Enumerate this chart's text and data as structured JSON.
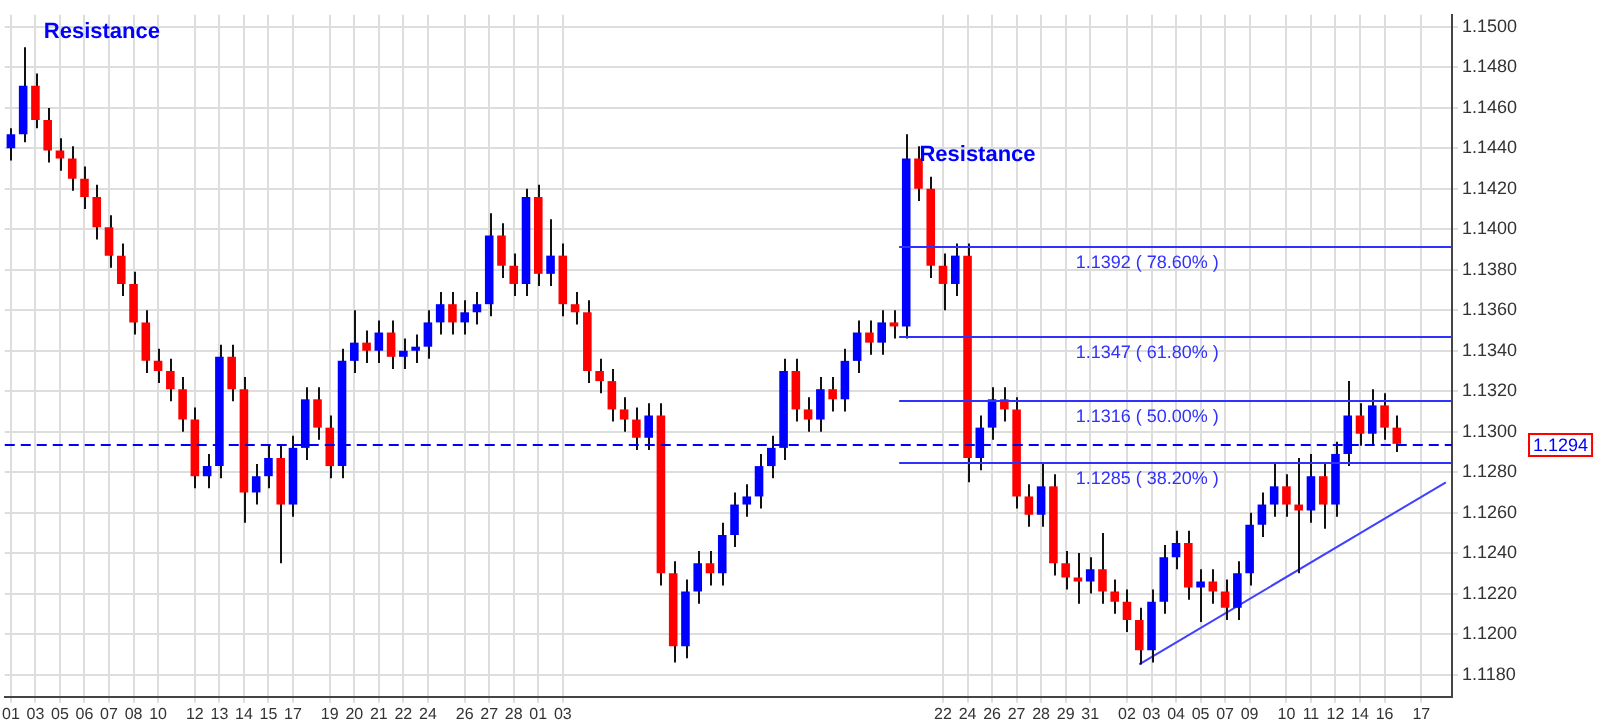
{
  "chart_data": {
    "type": "candlestick",
    "categories": [
      "01",
      null,
      "03",
      null,
      "05",
      null,
      "06",
      null,
      "07",
      null,
      "08",
      null,
      "10",
      null,
      null,
      "12",
      null,
      "13",
      null,
      "14",
      null,
      "15",
      null,
      "17",
      null,
      null,
      "19",
      null,
      "20",
      null,
      "21",
      null,
      "22",
      null,
      "24",
      null,
      null,
      "26",
      null,
      "27",
      null,
      "28",
      null,
      "01",
      null,
      "03",
      null,
      null,
      null,
      null,
      null,
      null,
      null,
      null,
      null,
      null,
      null,
      null,
      null,
      null,
      null,
      null,
      null,
      null,
      null,
      null,
      null,
      null,
      null,
      null,
      null,
      null,
      null,
      null,
      null,
      null,
      "22",
      null,
      "24",
      null,
      "26",
      null,
      "27",
      null,
      "28",
      null,
      "29",
      null,
      "31",
      null,
      null,
      "02",
      null,
      "03",
      null,
      "04",
      null,
      "05",
      null,
      "07",
      null,
      "09",
      null,
      null,
      "10",
      null,
      "11",
      null,
      "12",
      null,
      "14",
      null,
      "16",
      null,
      null,
      "17",
      null,
      null
    ],
    "series": [
      {
        "ohlc": [
          [
            1.144,
            1.145,
            1.1434,
            1.1447
          ],
          [
            1.1447,
            1.149,
            1.1443,
            1.1471
          ],
          [
            1.1471,
            1.1477,
            1.145,
            1.1454
          ],
          [
            1.1454,
            1.146,
            1.1433,
            1.1439
          ],
          [
            1.1439,
            1.1445,
            1.1429,
            1.1435
          ],
          [
            1.1435,
            1.1441,
            1.1419,
            1.1425
          ],
          [
            1.1425,
            1.1431,
            1.141,
            1.1416
          ],
          [
            1.1416,
            1.1422,
            1.1395,
            1.1401
          ],
          [
            1.1401,
            1.1407,
            1.1381,
            1.1387
          ],
          [
            1.1387,
            1.1393,
            1.1367,
            1.1373
          ],
          [
            1.1373,
            1.1379,
            1.1348,
            1.1354
          ],
          [
            1.1354,
            1.136,
            1.1329,
            1.1335
          ],
          [
            1.1335,
            1.1341,
            1.1324,
            1.133
          ],
          [
            1.133,
            1.1336,
            1.1315,
            1.1321
          ],
          [
            1.1321,
            1.1327,
            1.13,
            1.1306
          ],
          [
            1.1306,
            1.1312,
            1.1272,
            1.1278
          ],
          [
            1.1278,
            1.1289,
            1.1272,
            1.1283
          ],
          [
            1.1283,
            1.1343,
            1.1277,
            1.1337
          ],
          [
            1.1337,
            1.1343,
            1.1315,
            1.1321
          ],
          [
            1.1321,
            1.1327,
            1.1255,
            1.127
          ],
          [
            1.127,
            1.1284,
            1.1264,
            1.1278
          ],
          [
            1.1278,
            1.1293,
            1.1272,
            1.1287
          ],
          [
            1.1287,
            1.1293,
            1.1235,
            1.1264
          ],
          [
            1.1264,
            1.1298,
            1.1258,
            1.1292
          ],
          [
            1.1292,
            1.1322,
            1.1286,
            1.1316
          ],
          [
            1.1316,
            1.1322,
            1.1296,
            1.1302
          ],
          [
            1.1302,
            1.1308,
            1.1277,
            1.1283
          ],
          [
            1.1283,
            1.1341,
            1.1277,
            1.1335
          ],
          [
            1.1335,
            1.136,
            1.1329,
            1.1344
          ],
          [
            1.1344,
            1.135,
            1.1334,
            1.134
          ],
          [
            1.134,
            1.1355,
            1.1334,
            1.1349
          ],
          [
            1.1349,
            1.1355,
            1.1331,
            1.1337
          ],
          [
            1.1337,
            1.1346,
            1.1331,
            1.134
          ],
          [
            1.134,
            1.1348,
            1.1334,
            1.1342
          ],
          [
            1.1342,
            1.136,
            1.1336,
            1.1354
          ],
          [
            1.1354,
            1.1369,
            1.1348,
            1.1363
          ],
          [
            1.1363,
            1.1369,
            1.1348,
            1.1354
          ],
          [
            1.1354,
            1.1365,
            1.1348,
            1.1359
          ],
          [
            1.1359,
            1.1369,
            1.1353,
            1.1363
          ],
          [
            1.1363,
            1.1408,
            1.1357,
            1.1397
          ],
          [
            1.1397,
            1.1403,
            1.1376,
            1.1382
          ],
          [
            1.1382,
            1.1388,
            1.1367,
            1.1373
          ],
          [
            1.1373,
            1.142,
            1.1367,
            1.1416
          ],
          [
            1.1416,
            1.1422,
            1.1372,
            1.1378
          ],
          [
            1.1378,
            1.1405,
            1.1372,
            1.1387
          ],
          [
            1.1387,
            1.1393,
            1.1357,
            1.1363
          ],
          [
            1.1363,
            1.1369,
            1.1353,
            1.1359
          ],
          [
            1.1359,
            1.1365,
            1.1324,
            1.133
          ],
          [
            1.133,
            1.1336,
            1.1319,
            1.1325
          ],
          [
            1.1325,
            1.1331,
            1.1305,
            1.1311
          ],
          [
            1.1311,
            1.1317,
            1.13,
            1.1306
          ],
          [
            1.1306,
            1.1312,
            1.1291,
            1.1297
          ],
          [
            1.1297,
            1.1314,
            1.1291,
            1.1308
          ],
          [
            1.1308,
            1.1314,
            1.1224,
            1.123
          ],
          [
            1.123,
            1.1236,
            1.1186,
            1.1194
          ],
          [
            1.1194,
            1.1227,
            1.1188,
            1.1221
          ],
          [
            1.1221,
            1.1241,
            1.1215,
            1.1235
          ],
          [
            1.1235,
            1.1241,
            1.1224,
            1.123
          ],
          [
            1.123,
            1.1255,
            1.1224,
            1.1249
          ],
          [
            1.1249,
            1.127,
            1.1243,
            1.1264
          ],
          [
            1.1264,
            1.1274,
            1.1258,
            1.1268
          ],
          [
            1.1268,
            1.1289,
            1.1262,
            1.1283
          ],
          [
            1.1283,
            1.1298,
            1.1277,
            1.1292
          ],
          [
            1.1292,
            1.1336,
            1.1286,
            1.133
          ],
          [
            1.133,
            1.1336,
            1.1305,
            1.1311
          ],
          [
            1.1311,
            1.1317,
            1.13,
            1.1306
          ],
          [
            1.1306,
            1.1327,
            1.13,
            1.1321
          ],
          [
            1.1321,
            1.1327,
            1.131,
            1.1316
          ],
          [
            1.1316,
            1.1341,
            1.131,
            1.1335
          ],
          [
            1.1335,
            1.1355,
            1.1329,
            1.1349
          ],
          [
            1.1349,
            1.1355,
            1.1338,
            1.1344
          ],
          [
            1.1344,
            1.136,
            1.1338,
            1.1354
          ],
          [
            1.1354,
            1.136,
            1.1346,
            1.1352
          ],
          [
            1.1352,
            1.1447,
            1.1346,
            1.1435
          ],
          [
            1.1435,
            1.1441,
            1.1414,
            1.142
          ],
          [
            1.142,
            1.1426,
            1.1376,
            1.1382
          ],
          [
            1.1382,
            1.1388,
            1.136,
            1.1373
          ],
          [
            1.1373,
            1.1393,
            1.1367,
            1.1387
          ],
          [
            1.1387,
            1.1393,
            1.1275,
            1.1287
          ],
          [
            1.1287,
            1.1308,
            1.1281,
            1.1302
          ],
          [
            1.1302,
            1.1322,
            1.1296,
            1.1316
          ],
          [
            1.1316,
            1.1322,
            1.1305,
            1.1311
          ],
          [
            1.1311,
            1.1317,
            1.1262,
            1.1268
          ],
          [
            1.1268,
            1.1274,
            1.1253,
            1.1259
          ],
          [
            1.1259,
            1.1285,
            1.1253,
            1.1273
          ],
          [
            1.1273,
            1.1279,
            1.1229,
            1.1235
          ],
          [
            1.1235,
            1.1241,
            1.1222,
            1.1228
          ],
          [
            1.1228,
            1.124,
            1.1215,
            1.1226
          ],
          [
            1.1226,
            1.1238,
            1.122,
            1.1232
          ],
          [
            1.1232,
            1.125,
            1.1215,
            1.1221
          ],
          [
            1.1221,
            1.1227,
            1.121,
            1.1216
          ],
          [
            1.1216,
            1.1222,
            1.1201,
            1.1207
          ],
          [
            1.1207,
            1.1213,
            1.1185,
            1.1192
          ],
          [
            1.1192,
            1.1222,
            1.1186,
            1.1216
          ],
          [
            1.1216,
            1.1244,
            1.121,
            1.1238
          ],
          [
            1.1238,
            1.1251,
            1.1232,
            1.1245
          ],
          [
            1.1245,
            1.1251,
            1.1217,
            1.1223
          ],
          [
            1.1223,
            1.1232,
            1.1206,
            1.1226
          ],
          [
            1.1226,
            1.1232,
            1.1215,
            1.1221
          ],
          [
            1.1221,
            1.1227,
            1.1207,
            1.1213
          ],
          [
            1.1213,
            1.1236,
            1.1207,
            1.123
          ],
          [
            1.123,
            1.126,
            1.1224,
            1.1254
          ],
          [
            1.1254,
            1.127,
            1.1248,
            1.1264
          ],
          [
            1.1264,
            1.1285,
            1.1258,
            1.1273
          ],
          [
            1.1273,
            1.1279,
            1.1258,
            1.1264
          ],
          [
            1.1264,
            1.1287,
            1.123,
            1.1261
          ],
          [
            1.1261,
            1.1289,
            1.1255,
            1.1278
          ],
          [
            1.1278,
            1.1284,
            1.1252,
            1.1264
          ],
          [
            1.1264,
            1.1295,
            1.1258,
            1.1289
          ],
          [
            1.1289,
            1.1325,
            1.1283,
            1.1308
          ],
          [
            1.1308,
            1.1314,
            1.1293,
            1.1299
          ],
          [
            1.1299,
            1.1321,
            1.1293,
            1.1313
          ],
          [
            1.1313,
            1.1319,
            1.1296,
            1.1302
          ],
          [
            1.1302,
            1.1308,
            1.129,
            1.1294
          ],
          null,
          null,
          null,
          null
        ],
        "colors": [
          "#0000ff",
          "#0000ff",
          "#ff0000",
          "#ff0000",
          "#ff0000",
          "#ff0000",
          "#ff0000",
          "#ff0000",
          "#ff0000",
          "#ff0000",
          "#ff0000",
          "#ff0000",
          "#ff0000",
          "#ff0000",
          "#ff0000",
          "#ff0000",
          "#0000ff",
          "#0000ff",
          "#ff0000",
          "#ff0000",
          "#0000ff",
          "#0000ff",
          "#ff0000",
          "#0000ff",
          "#0000ff",
          "#ff0000",
          "#ff0000",
          "#0000ff",
          "#0000ff",
          "#ff0000",
          "#0000ff",
          "#ff0000",
          "#0000ff",
          "#0000ff",
          "#0000ff",
          "#0000ff",
          "#ff0000",
          "#0000ff",
          "#0000ff",
          "#0000ff",
          "#ff0000",
          "#ff0000",
          "#0000ff",
          "#ff0000",
          "#0000ff",
          "#ff0000",
          "#ff0000",
          "#ff0000",
          "#ff0000",
          "#ff0000",
          "#ff0000",
          "#ff0000",
          "#0000ff",
          "#ff0000",
          "#ff0000",
          "#0000ff",
          "#0000ff",
          "#ff0000",
          "#0000ff",
          "#0000ff",
          "#0000ff",
          "#0000ff",
          "#0000ff",
          "#0000ff",
          "#ff0000",
          "#ff0000",
          "#0000ff",
          "#ff0000",
          "#0000ff",
          "#0000ff",
          "#ff0000",
          "#0000ff",
          "#ff0000",
          "#0000ff",
          "#ff0000",
          "#ff0000",
          "#ff0000",
          "#0000ff",
          "#ff0000",
          "#0000ff",
          "#0000ff",
          "#ff0000",
          "#ff0000",
          "#ff0000",
          "#0000ff",
          "#ff0000",
          "#ff0000",
          "#ff0000",
          "#0000ff",
          "#ff0000",
          "#ff0000",
          "#ff0000",
          "#ff0000",
          "#0000ff",
          "#0000ff",
          "#0000ff",
          "#ff0000",
          "#0000ff",
          "#ff0000",
          "#ff0000",
          "#0000ff",
          "#0000ff",
          "#0000ff",
          "#0000ff",
          "#ff0000",
          "#ff0000",
          "#0000ff",
          "#ff0000",
          "#0000ff",
          "#0000ff",
          "#ff0000",
          "#0000ff",
          "#ff0000",
          "#ff0000",
          null,
          null,
          null,
          null
        ]
      },
      {
        "type": "line",
        "color": "#4040ff",
        "values": [
          null,
          null,
          null,
          null,
          null,
          null,
          null,
          null,
          null,
          null,
          null,
          null,
          null,
          null,
          null,
          null,
          null,
          null,
          null,
          null,
          null,
          null,
          null,
          null,
          null,
          null,
          null,
          null,
          null,
          null,
          null,
          null,
          null,
          null,
          null,
          null,
          null,
          null,
          null,
          null,
          null,
          null,
          null,
          null,
          null,
          null,
          null,
          null,
          null,
          null,
          null,
          null,
          null,
          null,
          null,
          null,
          null,
          null,
          null,
          null,
          null,
          null,
          null,
          null,
          null,
          null,
          null,
          null,
          null,
          null,
          null,
          null,
          null,
          null,
          null,
          null,
          null,
          null,
          null,
          null,
          null,
          null,
          null,
          null,
          null,
          null,
          null,
          null,
          null,
          null,
          null,
          null,
          1.1185,
          null,
          null,
          null,
          null,
          null,
          null,
          null,
          null,
          null,
          null,
          null,
          null,
          null,
          null,
          null,
          null,
          null,
          null,
          null,
          null,
          null,
          null,
          null,
          null,
          1.1275
        ]
      }
    ],
    "ylim": [
      1.1169,
      1.1506
    ],
    "yticks": [
      {
        "value": 1.118,
        "label": "1.1180"
      },
      {
        "value": 1.12,
        "label": "1.1200"
      },
      {
        "value": 1.122,
        "label": "1.1220"
      },
      {
        "value": 1.124,
        "label": "1.1240"
      },
      {
        "value": 1.126,
        "label": "1.1260"
      },
      {
        "value": 1.128,
        "label": "1.1280"
      },
      {
        "value": 1.13,
        "label": "1.1300"
      },
      {
        "value": 1.132,
        "label": "1.1320"
      },
      {
        "value": 1.134,
        "label": "1.1340"
      },
      {
        "value": 1.136,
        "label": "1.1360"
      },
      {
        "value": 1.138,
        "label": "1.1380"
      },
      {
        "value": 1.14,
        "label": "1.1400"
      },
      {
        "value": 1.142,
        "label": "1.1420"
      },
      {
        "value": 1.144,
        "label": "1.1440"
      },
      {
        "value": 1.146,
        "label": "1.1460"
      },
      {
        "value": 1.148,
        "label": "1.1480"
      },
      {
        "value": 1.15,
        "label": "1.1500"
      }
    ],
    "ref_lines": [
      {
        "axis": "y",
        "value": 1.1392,
        "label": "1.1392 ( 78.60% )",
        "color": "#3030ff",
        "line_style": "solid"
      },
      {
        "axis": "y",
        "value": 1.1347,
        "label": "1.1347 ( 61.80% )",
        "color": "#3030ff",
        "line_style": "solid"
      },
      {
        "axis": "y",
        "value": 1.1316,
        "label": "1.1316 ( 50.00% )",
        "color": "#3030ff",
        "line_style": "solid"
      },
      {
        "axis": "y",
        "value": 1.1285,
        "label": "1.1285 ( 38.20% )",
        "color": "#3030ff",
        "line_style": "solid"
      },
      {
        "axis": "y",
        "value": 1.1294,
        "label": "1.1294",
        "color": "#0000ff",
        "line_style": "dashed"
      }
    ],
    "annotations": [
      "Resistance",
      "Resistance"
    ],
    "grid": true,
    "legend": false
  }
}
